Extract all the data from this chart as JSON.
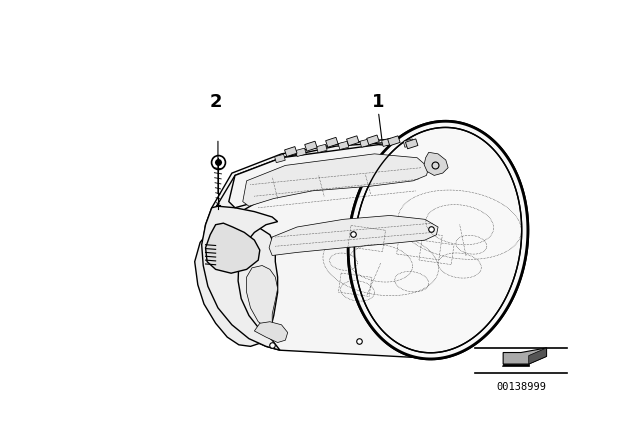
{
  "background_color": "#ffffff",
  "part_number": "00138999",
  "label_1": "1",
  "label_2": "2",
  "figsize": [
    6.4,
    4.48
  ],
  "dpi": 100,
  "line_color": "#000000",
  "lw_thick": 2.0,
  "lw_main": 1.0,
  "lw_thin": 0.5,
  "lw_dot": 0.4
}
